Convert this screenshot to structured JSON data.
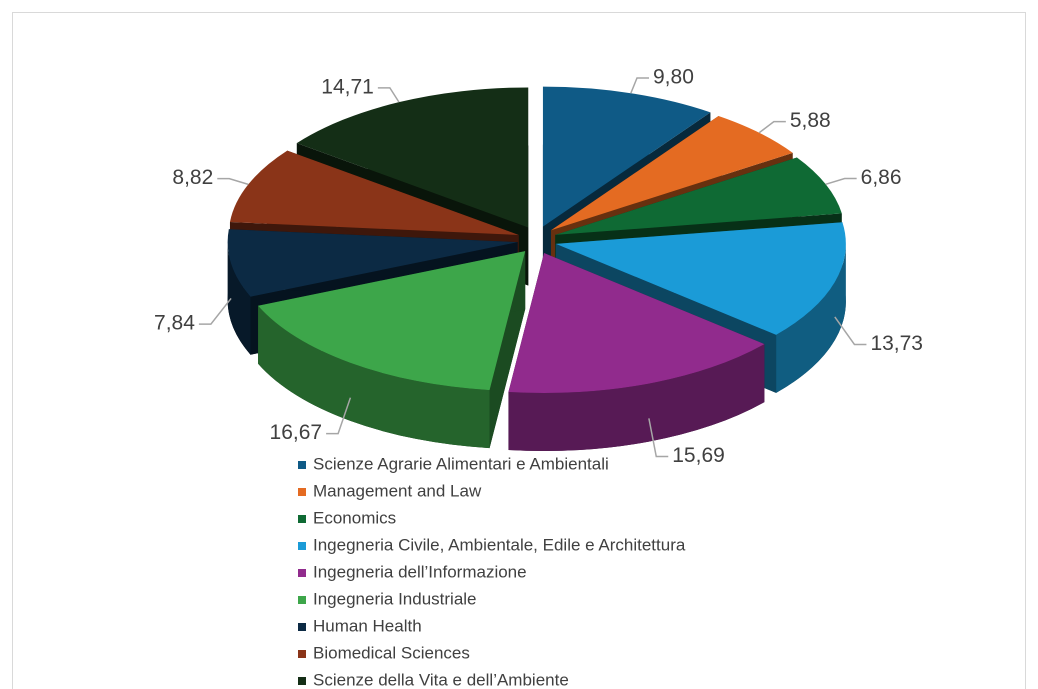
{
  "chart_data": {
    "type": "pie",
    "categories": [
      "Scienze Agrarie Alimentari e Ambientali",
      "Management and Law",
      "Economics",
      "Ingegneria Civile, Ambientale, Edile e Architettura",
      "Ingegneria dell’Informazione",
      "Ingegneria Industriale",
      "Human Health",
      "Biomedical Sciences",
      "Scienze della Vita e dell’Ambiente"
    ],
    "values": [
      9.8,
      5.88,
      6.86,
      13.73,
      15.69,
      16.67,
      7.84,
      8.82,
      14.71
    ],
    "value_labels": [
      "9,80",
      "5,88",
      "6,86",
      "13,73",
      "15,69",
      "16,67",
      "7,84",
      "8,82",
      "14,71"
    ],
    "colors": [
      "#0f5a86",
      "#e46b22",
      "#0f6a34",
      "#1b9bd7",
      "#912b8d",
      "#3da64a",
      "#0c2a44",
      "#8a3418",
      "#142e16"
    ],
    "legend": "bottom"
  }
}
